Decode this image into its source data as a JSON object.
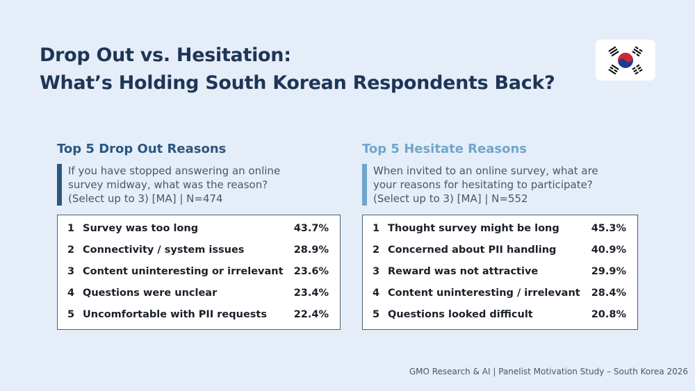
{
  "title": {
    "line1": "Drop Out vs. Hesitation:",
    "line2": "What’s Holding South Korean Respondents Back?"
  },
  "colors": {
    "background": "#e5eef8",
    "title": "#1e3556",
    "dropout_accent": "#2b5780",
    "hesitate_accent": "#6fa6cd"
  },
  "dropout": {
    "heading": "Top 5 Drop Out Reasons",
    "question_lines": [
      "If you have stopped answering an online",
      "survey midway, what was the reason?",
      "(Select up to 3) [MA] | N=474"
    ],
    "rows": [
      {
        "rank": "1",
        "reason": "Survey was too long",
        "pct": "43.7%"
      },
      {
        "rank": "2",
        "reason": "Connectivity / system issues",
        "pct": "28.9%"
      },
      {
        "rank": "3",
        "reason": "Content uninteresting or irrelevant",
        "pct": "23.6%"
      },
      {
        "rank": "4",
        "reason": "Questions were unclear",
        "pct": "23.4%"
      },
      {
        "rank": "5",
        "reason": "Uncomfortable with PII requests",
        "pct": "22.4%"
      }
    ]
  },
  "hesitate": {
    "heading": "Top 5 Hesitate Reasons",
    "question_lines": [
      "When invited to an online survey, what are",
      "your reasons for hesitating to participate?",
      "(Select up to 3) [MA] | N=552"
    ],
    "rows": [
      {
        "rank": "1",
        "reason": "Thought survey might be long",
        "pct": "45.3%"
      },
      {
        "rank": "2",
        "reason": "Concerned about PII handling",
        "pct": "40.9%"
      },
      {
        "rank": "3",
        "reason": "Reward was not attractive",
        "pct": "29.9%"
      },
      {
        "rank": "4",
        "reason": "Content uninteresting / irrelevant",
        "pct": "28.4%"
      },
      {
        "rank": "5",
        "reason": "Questions looked difficult",
        "pct": "20.8%"
      }
    ]
  },
  "footer": "GMO Research & AI | Panelist Motivation Study – South Korea 2026",
  "flag_icon": "south-korea-flag-icon"
}
